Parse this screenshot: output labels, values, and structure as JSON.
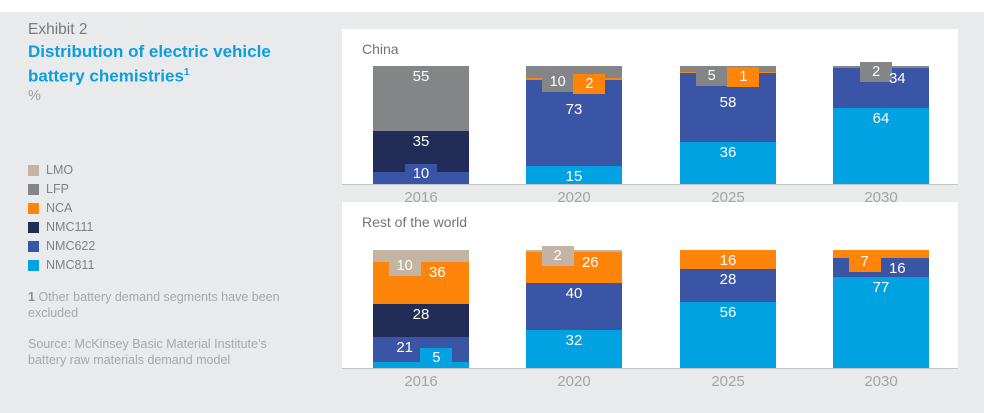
{
  "page": {
    "background": "#e9eaeb",
    "panel_background": "#ffffff",
    "accent_blue": "#0c9edd"
  },
  "header": {
    "exhibit_label": "Exhibit 2",
    "title_line1": "Distribution of electric vehicle",
    "title_line2": "battery chemistries",
    "title_superscript": "1",
    "unit_label": "%"
  },
  "legend": {
    "position": "left",
    "items": [
      {
        "label": "LMO",
        "color": "#c3b4a3"
      },
      {
        "label": "LFP",
        "color": "#838587"
      },
      {
        "label": "NCA",
        "color": "#ff850a"
      },
      {
        "label": "NMC111",
        "color": "#212d56"
      },
      {
        "label": "NMC622",
        "color": "#3a55a5"
      },
      {
        "label": "NMC811",
        "color": "#00a2e1"
      }
    ]
  },
  "footnote": {
    "marker": "1",
    "text": "Other battery demand segments have been excluded"
  },
  "source": {
    "text": "Source: McKinsey Basic Material Institute’s battery raw materials demand model"
  },
  "chart_data": [
    {
      "type": "bar",
      "stacked": true,
      "title": "China",
      "unit": "%",
      "ylim": [
        0,
        100
      ],
      "grid": false,
      "categories": [
        "2016",
        "2020",
        "2025",
        "2030"
      ],
      "series": [
        {
          "name": "LMO",
          "color": "#c3b4a3",
          "values": [
            0,
            0,
            0,
            0
          ]
        },
        {
          "name": "LFP",
          "color": "#838587",
          "values": [
            55,
            10,
            5,
            2
          ]
        },
        {
          "name": "NCA",
          "color": "#ff850a",
          "values": [
            0,
            2,
            1,
            0
          ]
        },
        {
          "name": "NMC111",
          "color": "#212d56",
          "values": [
            35,
            0,
            0,
            0
          ]
        },
        {
          "name": "NMC622",
          "color": "#3a55a5",
          "values": [
            10,
            73,
            58,
            34
          ]
        },
        {
          "name": "NMC811",
          "color": "#00a2e1",
          "values": [
            0,
            15,
            36,
            64
          ]
        }
      ],
      "label_hints": {
        "2016": {
          "NMC622": "tab-up-center"
        },
        "2020": {
          "LFP": "tab-down-left",
          "NCA": "tab-down-right",
          "NMC622": "in-low"
        },
        "2025": {
          "LFP": "tab-down-left",
          "NCA": "tab-down-right",
          "NMC622": "in-low"
        },
        "2030": {
          "LFP": "tab-down-mid",
          "NMC622": "in-right"
        }
      }
    },
    {
      "type": "bar",
      "stacked": true,
      "title": "Rest of the world",
      "unit": "%",
      "ylim": [
        0,
        100
      ],
      "grid": false,
      "categories": [
        "2016",
        "2020",
        "2025",
        "2030"
      ],
      "series": [
        {
          "name": "LMO",
          "color": "#c3b4a3",
          "values": [
            10,
            2,
            0,
            0
          ]
        },
        {
          "name": "LFP",
          "color": "#838587",
          "values": [
            0,
            0,
            0,
            0
          ]
        },
        {
          "name": "NCA",
          "color": "#ff850a",
          "values": [
            36,
            26,
            16,
            7
          ]
        },
        {
          "name": "NMC111",
          "color": "#212d56",
          "values": [
            28,
            0,
            0,
            0
          ]
        },
        {
          "name": "NMC622",
          "color": "#3a55a5",
          "values": [
            21,
            40,
            28,
            16
          ]
        },
        {
          "name": "NMC811",
          "color": "#00a2e1",
          "values": [
            5,
            32,
            56,
            77
          ]
        }
      ],
      "label_hints": {
        "2016": {
          "LMO": "tab-down-left",
          "NCA": "in-right",
          "NMC622": "in-left",
          "NMC811": "tab-up-right"
        },
        "2020": {
          "LMO": "tab-down-left",
          "NCA": "in-right"
        },
        "2030": {
          "NCA": "tab-down-left",
          "NMC622": "in-right"
        }
      }
    }
  ]
}
